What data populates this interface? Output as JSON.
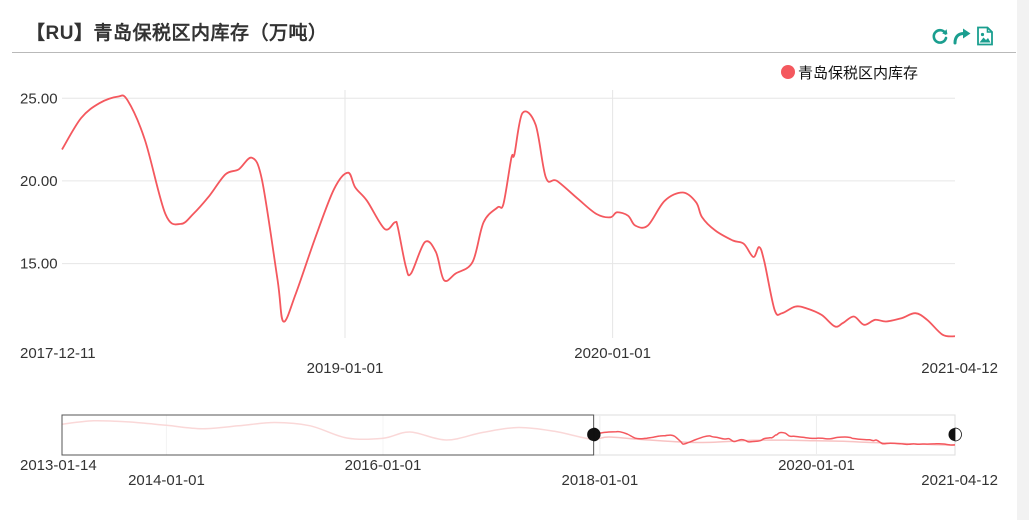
{
  "header": {
    "title": "【RU】青岛保税区内库存（万吨）"
  },
  "toolbox": {
    "restore_icon": "refresh-icon",
    "share_icon": "share-arrow-icon",
    "save_icon": "save-image-icon",
    "color": "#1a9e8f"
  },
  "colors": {
    "series": "#f4585e",
    "grid": "#e6e6e6",
    "axis_text": "#333333"
  },
  "chart_data": {
    "type": "line",
    "title": "【RU】青岛保税区内库存（万吨）",
    "legend_position": "top-right",
    "grid": true,
    "x_type": "date",
    "xlim": [
      "2017-12-11",
      "2021-04-12"
    ],
    "ylim": [
      10.5,
      25.5
    ],
    "y_ticks": [
      "25.00",
      "20.00",
      "15.00"
    ],
    "x_ticks": [
      "2017-12-11",
      "2019-01-01",
      "2020-01-01",
      "2021-04-12"
    ],
    "series": [
      {
        "name": "青岛保税区内库存",
        "color": "#f4585e",
        "points": [
          [
            "2017-12-11",
            21.9
          ],
          [
            "2018-01-06",
            23.8
          ],
          [
            "2018-01-31",
            24.7
          ],
          [
            "2018-02-25",
            25.1
          ],
          [
            "2018-03-10",
            24.9
          ],
          [
            "2018-04-03",
            22.5
          ],
          [
            "2018-05-01",
            18.0
          ],
          [
            "2018-05-22",
            17.4
          ],
          [
            "2018-06-08",
            18.0
          ],
          [
            "2018-06-30",
            19.1
          ],
          [
            "2018-07-22",
            20.4
          ],
          [
            "2018-08-09",
            20.7
          ],
          [
            "2018-08-27",
            21.4
          ],
          [
            "2018-09-10",
            20.0
          ],
          [
            "2018-10-01",
            14.0
          ],
          [
            "2018-10-09",
            11.5
          ],
          [
            "2018-10-26",
            13.2
          ],
          [
            "2018-11-21",
            16.5
          ],
          [
            "2018-12-17",
            19.5
          ],
          [
            "2019-01-05",
            20.5
          ],
          [
            "2019-01-15",
            19.6
          ],
          [
            "2019-01-31",
            18.8
          ],
          [
            "2019-02-24",
            17.1
          ],
          [
            "2019-03-10",
            17.5
          ],
          [
            "2019-03-14",
            17.2
          ],
          [
            "2019-03-25",
            14.8
          ],
          [
            "2019-04-01",
            14.4
          ],
          [
            "2019-04-20",
            16.3
          ],
          [
            "2019-05-05",
            15.7
          ],
          [
            "2019-05-16",
            14.0
          ],
          [
            "2019-06-01",
            14.4
          ],
          [
            "2019-06-24",
            15.1
          ],
          [
            "2019-07-09",
            17.5
          ],
          [
            "2019-07-28",
            18.4
          ],
          [
            "2019-08-05",
            18.6
          ],
          [
            "2019-08-16",
            21.4
          ],
          [
            "2019-08-20",
            21.6
          ],
          [
            "2019-08-31",
            24.1
          ],
          [
            "2019-09-18",
            23.4
          ],
          [
            "2019-10-02",
            20.2
          ],
          [
            "2019-10-17",
            20.0
          ],
          [
            "2019-11-15",
            18.9
          ],
          [
            "2019-12-10",
            18.0
          ],
          [
            "2019-12-29",
            17.8
          ],
          [
            "2020-01-07",
            18.1
          ],
          [
            "2020-01-22",
            17.9
          ],
          [
            "2020-02-01",
            17.3
          ],
          [
            "2020-02-18",
            17.3
          ],
          [
            "2020-03-12",
            18.8
          ],
          [
            "2020-04-06",
            19.3
          ],
          [
            "2020-04-24",
            18.7
          ],
          [
            "2020-05-02",
            17.8
          ],
          [
            "2020-05-20",
            17.0
          ],
          [
            "2020-06-13",
            16.4
          ],
          [
            "2020-06-28",
            16.2
          ],
          [
            "2020-07-11",
            15.4
          ],
          [
            "2020-07-19",
            16.0
          ],
          [
            "2020-07-26",
            15.1
          ],
          [
            "2020-08-09",
            12.2
          ],
          [
            "2020-08-19",
            12.0
          ],
          [
            "2020-09-06",
            12.4
          ],
          [
            "2020-09-21",
            12.3
          ],
          [
            "2020-10-12",
            11.9
          ],
          [
            "2020-10-30",
            11.2
          ],
          [
            "2020-11-10",
            11.4
          ],
          [
            "2020-11-25",
            11.8
          ],
          [
            "2020-12-09",
            11.3
          ],
          [
            "2020-12-24",
            11.6
          ],
          [
            "2021-01-08",
            11.5
          ],
          [
            "2021-01-29",
            11.7
          ],
          [
            "2021-02-17",
            12.0
          ],
          [
            "2021-03-05",
            11.6
          ],
          [
            "2021-03-26",
            10.7
          ],
          [
            "2021-04-12",
            10.6
          ]
        ]
      }
    ],
    "overview": {
      "type": "area",
      "x_range": [
        "2013-01-14",
        "2021-04-12"
      ],
      "x_ticks": [
        "2013-01-14",
        "2014-01-01",
        "2016-01-01",
        "2018-01-01",
        "2020-01-01",
        "2021-04-12"
      ],
      "selected_range": [
        "2017-12-11",
        "2021-04-12"
      ],
      "ylim": [
        4,
        28
      ],
      "points": [
        [
          "2013-01-14",
          22.5
        ],
        [
          "2013-05-01",
          24.5
        ],
        [
          "2013-09-01",
          23.8
        ],
        [
          "2014-01-01",
          21.8
        ],
        [
          "2014-05-01",
          19.8
        ],
        [
          "2014-09-01",
          21.5
        ],
        [
          "2015-01-01",
          23.5
        ],
        [
          "2015-05-01",
          21.5
        ],
        [
          "2015-09-01",
          14.2
        ],
        [
          "2016-01-01",
          14.0
        ],
        [
          "2016-04-01",
          17.8
        ],
        [
          "2016-08-01",
          13.0
        ],
        [
          "2016-12-01",
          17.5
        ],
        [
          "2017-04-01",
          20.5
        ],
        [
          "2017-08-01",
          18.2
        ],
        [
          "2017-12-01",
          13.6
        ],
        [
          "2018-02-01",
          14.8
        ],
        [
          "2018-06-01",
          13.2
        ],
        [
          "2018-12-01",
          11.5
        ],
        [
          "2019-06-01",
          12.8
        ],
        [
          "2019-10-01",
          12.9
        ],
        [
          "2020-01-01",
          12.5
        ],
        [
          "2020-04-01",
          12.2
        ],
        [
          "2020-07-01",
          11.5
        ],
        [
          "2020-10-01",
          11.0
        ],
        [
          "2021-01-01",
          10.4
        ],
        [
          "2021-04-12",
          9.8
        ]
      ]
    }
  }
}
